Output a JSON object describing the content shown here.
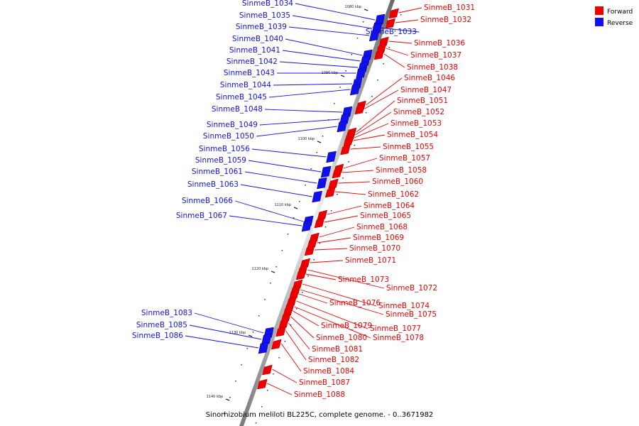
{
  "legend": {
    "forward": {
      "label": "Forward",
      "color": "#ee0000"
    },
    "reverse": {
      "label": "Reverse",
      "color": "#1111ee"
    }
  },
  "caption": "Sinorhizobium meliloti BL225C, complete genome. - 0..3671982",
  "ticks": [
    "1080 kbp",
    "1090 kbp",
    "1100 kbp",
    "1110 kbp",
    "1120 kbp",
    "1130 kbp",
    "1140 kbp"
  ],
  "genes": [
    {
      "name": "SinmeB_1031",
      "strand": "forward"
    },
    {
      "name": "SinmeB_1032",
      "strand": "forward"
    },
    {
      "name": "SinmeB_1033",
      "strand": "reverse"
    },
    {
      "name": "SinmeB_1034",
      "strand": "reverse"
    },
    {
      "name": "SinmeB_1035",
      "strand": "reverse"
    },
    {
      "name": "SinmeB_1036",
      "strand": "forward"
    },
    {
      "name": "SinmeB_1037",
      "strand": "forward"
    },
    {
      "name": "SinmeB_1038",
      "strand": "forward"
    },
    {
      "name": "SinmeB_1039",
      "strand": "reverse"
    },
    {
      "name": "SinmeB_1040",
      "strand": "reverse"
    },
    {
      "name": "SinmeB_1041",
      "strand": "reverse"
    },
    {
      "name": "SinmeB_1042",
      "strand": "reverse"
    },
    {
      "name": "SinmeB_1043",
      "strand": "reverse"
    },
    {
      "name": "SinmeB_1044",
      "strand": "reverse"
    },
    {
      "name": "SinmeB_1045",
      "strand": "reverse"
    },
    {
      "name": "SinmeB_1046",
      "strand": "forward"
    },
    {
      "name": "SinmeB_1047",
      "strand": "forward"
    },
    {
      "name": "SinmeB_1048",
      "strand": "reverse"
    },
    {
      "name": "SinmeB_1049",
      "strand": "reverse"
    },
    {
      "name": "SinmeB_1050",
      "strand": "reverse"
    },
    {
      "name": "SinmeB_1051",
      "strand": "forward"
    },
    {
      "name": "SinmeB_1052",
      "strand": "forward"
    },
    {
      "name": "SinmeB_1053",
      "strand": "forward"
    },
    {
      "name": "SinmeB_1054",
      "strand": "forward"
    },
    {
      "name": "SinmeB_1055",
      "strand": "forward"
    },
    {
      "name": "SinmeB_1056",
      "strand": "reverse"
    },
    {
      "name": "SinmeB_1057",
      "strand": "forward"
    },
    {
      "name": "SinmeB_1058",
      "strand": "forward"
    },
    {
      "name": "SinmeB_1059",
      "strand": "reverse"
    },
    {
      "name": "SinmeB_1060",
      "strand": "forward"
    },
    {
      "name": "SinmeB_1061",
      "strand": "reverse"
    },
    {
      "name": "SinmeB_1062",
      "strand": "forward"
    },
    {
      "name": "SinmeB_1063",
      "strand": "reverse"
    },
    {
      "name": "SinmeB_1064",
      "strand": "forward"
    },
    {
      "name": "SinmeB_1065",
      "strand": "forward"
    },
    {
      "name": "SinmeB_1066",
      "strand": "reverse"
    },
    {
      "name": "SinmeB_1067",
      "strand": "reverse"
    },
    {
      "name": "SinmeB_1068",
      "strand": "forward"
    },
    {
      "name": "SinmeB_1069",
      "strand": "forward"
    },
    {
      "name": "SinmeB_1070",
      "strand": "forward"
    },
    {
      "name": "SinmeB_1071",
      "strand": "forward"
    },
    {
      "name": "SinmeB_1072",
      "strand": "forward"
    },
    {
      "name": "SinmeB_1073",
      "strand": "forward"
    },
    {
      "name": "SinmeB_1074",
      "strand": "forward"
    },
    {
      "name": "SinmeB_1075",
      "strand": "forward"
    },
    {
      "name": "SinmeB_1076",
      "strand": "forward"
    },
    {
      "name": "SinmeB_1077",
      "strand": "forward"
    },
    {
      "name": "SinmeB_1078",
      "strand": "forward"
    },
    {
      "name": "SinmeB_1079",
      "strand": "forward"
    },
    {
      "name": "SinmeB_1080",
      "strand": "forward"
    },
    {
      "name": "SinmeB_1081",
      "strand": "forward"
    },
    {
      "name": "SinmeB_1082",
      "strand": "forward"
    },
    {
      "name": "SinmeB_1083",
      "strand": "reverse"
    },
    {
      "name": "SinmeB_1084",
      "strand": "forward"
    },
    {
      "name": "SinmeB_1085",
      "strand": "reverse"
    },
    {
      "name": "SinmeB_1086",
      "strand": "reverse"
    },
    {
      "name": "SinmeB_1087",
      "strand": "forward"
    },
    {
      "name": "SinmeB_1088",
      "strand": "forward"
    }
  ]
}
